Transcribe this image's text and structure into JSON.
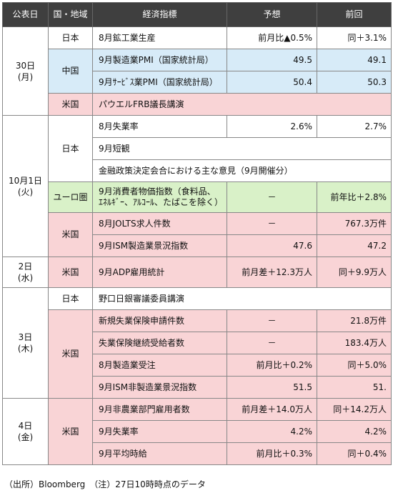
{
  "header": [
    "公表日",
    "国・地域",
    "経済指標",
    "予想",
    "前回"
  ],
  "groups": [
    {
      "date": "30日\n(月)",
      "regions": [
        {
          "name": "日本",
          "color": "white",
          "rows": [
            {
              "indicator": "8月鉱工業生産",
              "forecast": "前月比▲0.5%",
              "previous": "同＋3.1%"
            }
          ]
        },
        {
          "name": "中国",
          "color": "blue",
          "rows": [
            {
              "indicator": "9月製造業PMI（国家統計局）",
              "forecast": "49.5",
              "previous": "49.1"
            },
            {
              "indicator": "9月ｻｰﾋﾞｽ業PMI（国家統計局）",
              "forecast": "50.4",
              "previous": "50.3"
            }
          ]
        },
        {
          "name": "米国",
          "color": "pink",
          "rows": [
            {
              "indicator": "パウエルFRB議長講演",
              "span": true
            }
          ]
        }
      ]
    },
    {
      "date": "10月1日\n(火)",
      "regions": [
        {
          "name": "日本",
          "color": "white",
          "rows": [
            {
              "indicator": "8月失業率",
              "forecast": "2.6%",
              "previous": "2.7%"
            },
            {
              "indicator": "9月短観",
              "span": true
            },
            {
              "indicator": "金融政策決定会合における主な意見（9月開催分）",
              "span": true
            }
          ]
        },
        {
          "name": "ユーロ圏",
          "color": "green",
          "rows": [
            {
              "indicator": "9月消費者物価指数（食料品、\nｴﾈﾙｷﾞｰ、ｱﾙｺｰﾙ、たばこを除く）",
              "forecast": "－",
              "previous": "前年比＋2.8%",
              "tall": true,
              "center": true
            }
          ]
        },
        {
          "name": "米国",
          "color": "pink",
          "rows": [
            {
              "indicator": "8月JOLTS求人件数",
              "forecast": "－",
              "previous": "767.3万件",
              "center": true
            },
            {
              "indicator": "9月ISM製造業景況指数",
              "forecast": "47.6",
              "previous": "47.2"
            }
          ]
        }
      ]
    },
    {
      "date": "2日\n(水)",
      "regions": [
        {
          "name": "米国",
          "color": "pink",
          "rows": [
            {
              "indicator": "9月ADP雇用統計",
              "forecast": "前月差＋12.3万人",
              "previous": "同＋9.9万人",
              "tall": true
            }
          ]
        }
      ]
    },
    {
      "date": "3日\n(木)",
      "regions": [
        {
          "name": "日本",
          "color": "white",
          "rows": [
            {
              "indicator": "野口日銀審議委員講演",
              "span": true
            }
          ]
        },
        {
          "name": "米国",
          "color": "pink",
          "rows": [
            {
              "indicator": "新規失業保険申請件数",
              "forecast": "－",
              "previous": "21.8万件",
              "center": true
            },
            {
              "indicator": "失業保険継続受給者数",
              "forecast": "－",
              "previous": "183.4万人",
              "center": true
            },
            {
              "indicator": "8月製造業受注",
              "forecast": "前月比＋0.2%",
              "previous": "同＋5.0%"
            },
            {
              "indicator": "9月ISM非製造業景況指数",
              "forecast": "51.5",
              "previous": "51."
            }
          ]
        }
      ]
    },
    {
      "date": "4日\n(金)",
      "regions": [
        {
          "name": "米国",
          "color": "pink",
          "rows": [
            {
              "indicator": "9月非農業部門雇用者数",
              "forecast": "前月差＋14.0万人",
              "previous": "同＋14.2万人"
            },
            {
              "indicator": "9月失業率",
              "forecast": "4.2%",
              "previous": "4.2%"
            },
            {
              "indicator": "9月平均時給",
              "forecast": "前月比＋0.3%",
              "previous": "同＋0.4%"
            }
          ]
        }
      ]
    }
  ],
  "footer": "（出所）Bloomberg　（注）27日10時時点のデータ"
}
